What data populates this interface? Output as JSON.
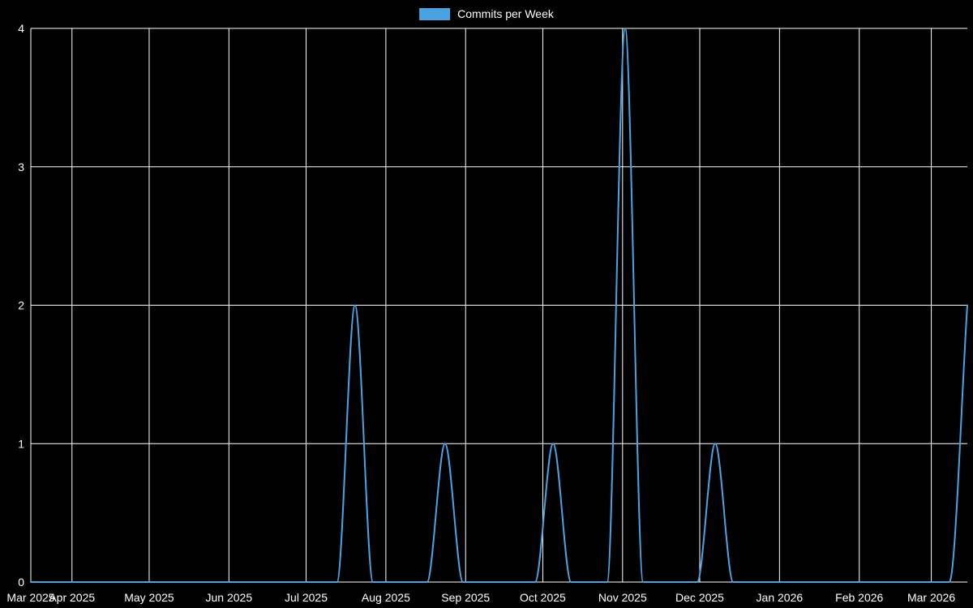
{
  "page": {
    "background_color": "#000000"
  },
  "legend": {
    "label": "Commits per Week",
    "swatch_color": "#4aa2e0",
    "position": "top-center"
  },
  "chart_data": {
    "type": "line",
    "title": "Commits per Week",
    "series_name": "Commits per Week",
    "line_color": "#4aa2e0",
    "background_color": "#000000",
    "grid_color": "#ffffff",
    "text_color": "#ffffff",
    "grid": true,
    "legend_position": "top-center",
    "x_axis": {
      "type": "time",
      "unit": "week",
      "start": "2025-03-16",
      "end": "2026-03-15",
      "tick_labels": [
        "Mar 2025",
        "Apr 2025",
        "May 2025",
        "Jun 2025",
        "Jul 2025",
        "Aug 2025",
        "Sep 2025",
        "Oct 2025",
        "Nov 2025",
        "Dec 2025",
        "Jan 2026",
        "Feb 2026",
        "Mar 2026"
      ],
      "tick_dates": [
        "2025-03-16",
        "2025-04-01",
        "2025-05-01",
        "2025-06-01",
        "2025-07-01",
        "2025-08-01",
        "2025-09-01",
        "2025-10-01",
        "2025-11-01",
        "2025-12-01",
        "2026-01-01",
        "2026-02-01",
        "2026-03-01"
      ]
    },
    "y_axis": {
      "min": 0,
      "max": 4,
      "ticks": [
        0,
        1,
        2,
        3,
        4
      ],
      "tick_labels": [
        "0",
        "1",
        "2",
        "3",
        "4"
      ]
    },
    "weeks_start": "2025-03-16",
    "week_interval_days": 7,
    "values": [
      0,
      0,
      0,
      0,
      0,
      0,
      0,
      0,
      0,
      0,
      0,
      0,
      0,
      0,
      0,
      0,
      0,
      0,
      2,
      0,
      0,
      0,
      0,
      1,
      0,
      0,
      0,
      0,
      0,
      1,
      0,
      0,
      0,
      4,
      0,
      0,
      0,
      0,
      1,
      0,
      0,
      0,
      0,
      0,
      0,
      0,
      0,
      0,
      0,
      0,
      0,
      0,
      2
    ],
    "nonzero_points": [
      {
        "week": "2025-07-20",
        "value": 2
      },
      {
        "week": "2025-08-24",
        "value": 1
      },
      {
        "week": "2025-10-05",
        "value": 1
      },
      {
        "week": "2025-11-02",
        "value": 4
      },
      {
        "week": "2025-12-07",
        "value": 1
      },
      {
        "week": "2026-03-15",
        "value": 2
      }
    ]
  }
}
